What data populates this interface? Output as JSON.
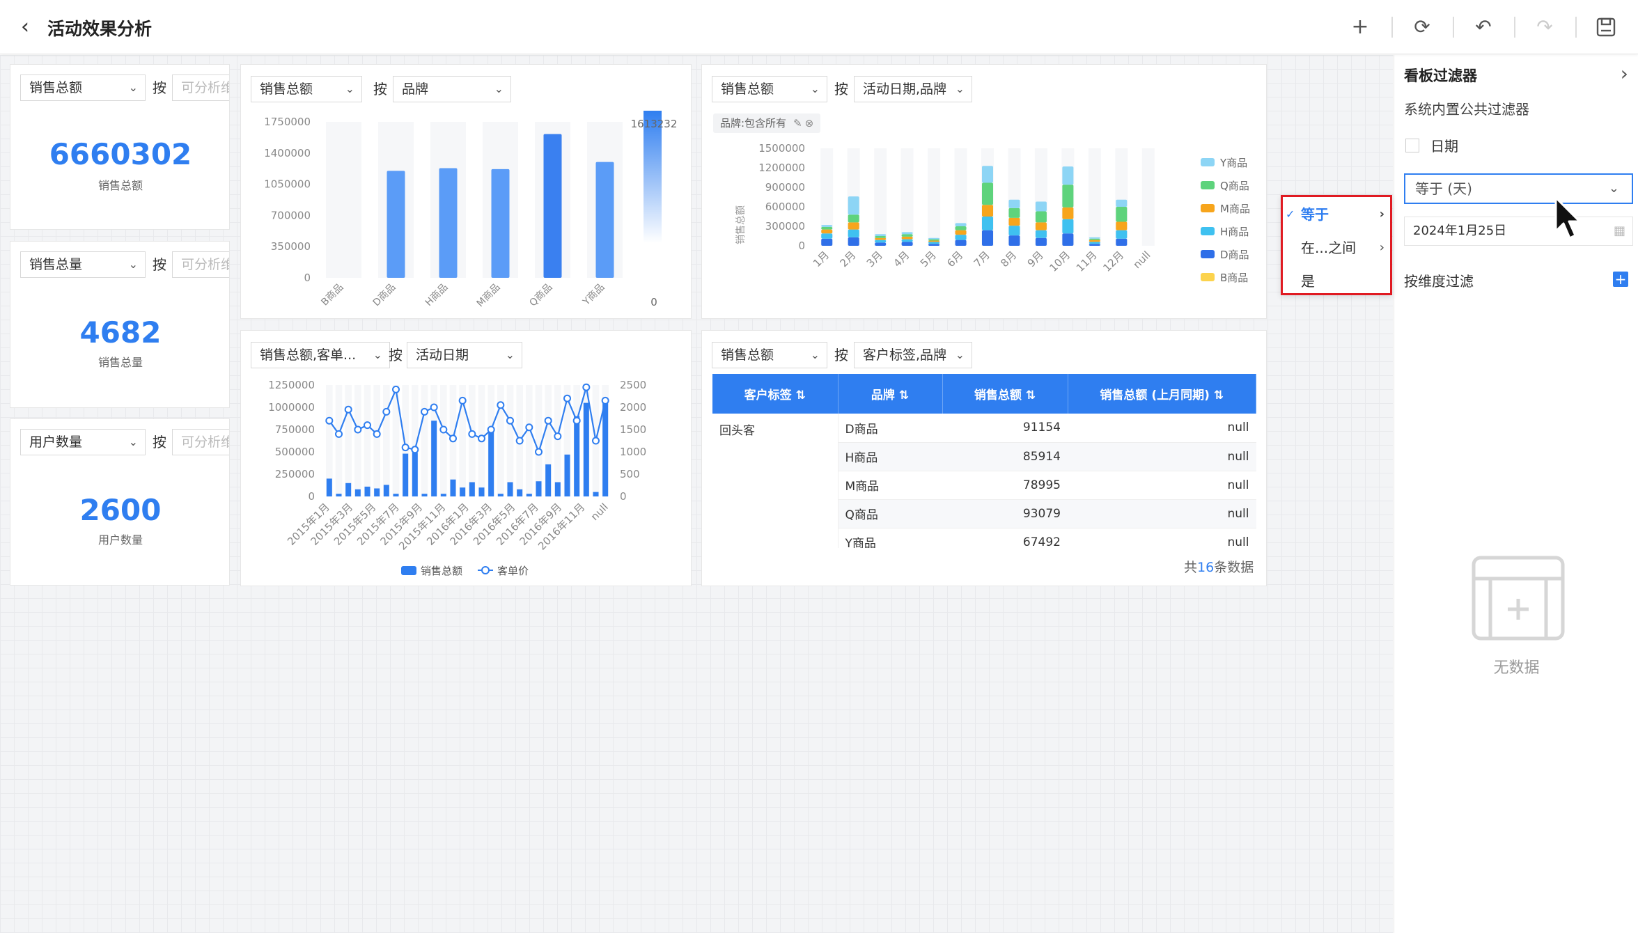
{
  "header": {
    "title": "活动效果分析"
  },
  "kpis": [
    {
      "metric": "销售总额",
      "by": "按",
      "placeholder": "可分析维度",
      "value": "6660302",
      "caption": "销售总额"
    },
    {
      "metric": "销售总量",
      "by": "按",
      "placeholder": "可分析维度",
      "value": "4682",
      "caption": "销售总量"
    },
    {
      "metric": "用户数量",
      "by": "按",
      "placeholder": "可分析维度",
      "value": "2600",
      "caption": "用户数量"
    }
  ],
  "bar_card": {
    "metric": "销售总额",
    "by": "按",
    "dimension": "品牌",
    "legend_max": "1613232",
    "legend_min": "0"
  },
  "stack_card": {
    "metric": "销售总额",
    "by": "按",
    "dimension": "活动日期,品牌",
    "filter_tag": "品牌:包含所有",
    "ylabel": "销售总额"
  },
  "combo_card": {
    "metric": "销售总额,客单...",
    "by": "按",
    "dimension": "活动日期",
    "legend": [
      "销售总额",
      "客单价"
    ]
  },
  "table_card": {
    "metric": "销售总额",
    "by": "按",
    "dimension": "客户标签,品牌",
    "columns": [
      "客户标签",
      "品牌",
      "销售总额",
      "销售总额 (上月同期)"
    ],
    "group_label": "回头客",
    "rows": [
      {
        "brand": "D商品",
        "sales": "91154",
        "prev": "null"
      },
      {
        "brand": "H商品",
        "sales": "85914",
        "prev": "null"
      },
      {
        "brand": "M商品",
        "sales": "78995",
        "prev": "null"
      },
      {
        "brand": "Q商品",
        "sales": "93079",
        "prev": "null"
      },
      {
        "brand": "Y商品",
        "sales": "67492",
        "prev": "null"
      }
    ],
    "footer_prefix": "共",
    "footer_count": "16",
    "footer_suffix": "条数据"
  },
  "dropdown": {
    "items": [
      "等于",
      "在...之间",
      "是"
    ]
  },
  "panel": {
    "title": "看板过滤器",
    "subtitle": "系统内置公共过滤器",
    "checkbox_label": "日期",
    "operator": "等于 (天)",
    "date_value": "2024年1月25日",
    "dim_filter": "按维度过滤",
    "empty": "无数据"
  },
  "chart_data": [
    {
      "type": "bar",
      "categories": [
        "B商品",
        "D商品",
        "H商品",
        "M商品",
        "Q商品",
        "Y商品"
      ],
      "values": [
        0,
        1200000,
        1230000,
        1220000,
        1613232,
        1300000
      ],
      "ylim": [
        0,
        1750000
      ],
      "yticks": [
        "1750000",
        "1400000",
        "1050000",
        "700000",
        "350000",
        "0"
      ],
      "colors": [
        "#5b9cf7",
        "#5b9cf7",
        "#5b9cf7",
        "#5b9cf7",
        "#3a80f0",
        "#5b9cf7"
      ]
    },
    {
      "type": "bar",
      "stacked": true,
      "categories": [
        "1月",
        "2月",
        "3月",
        "4月",
        "5月",
        "6月",
        "7月",
        "8月",
        "9月",
        "10月",
        "11月",
        "12月",
        "null"
      ],
      "yticks": [
        "1500000",
        "1200000",
        "900000",
        "600000",
        "300000",
        "0"
      ],
      "ylim": [
        0,
        1500000
      ],
      "series": [
        {
          "name": "D商品",
          "color": "#2f6fe8",
          "values": [
            110000,
            130000,
            50000,
            60000,
            30000,
            90000,
            240000,
            160000,
            120000,
            190000,
            30000,
            110000,
            0
          ]
        },
        {
          "name": "H商品",
          "color": "#3fc1f0",
          "values": [
            80000,
            120000,
            40000,
            40000,
            30000,
            80000,
            210000,
            150000,
            120000,
            220000,
            30000,
            130000,
            0
          ]
        },
        {
          "name": "M商品",
          "color": "#f7a51c",
          "values": [
            60000,
            110000,
            30000,
            40000,
            20000,
            70000,
            180000,
            120000,
            120000,
            180000,
            30000,
            130000,
            0
          ]
        },
        {
          "name": "Q商品",
          "color": "#5ed37c",
          "values": [
            40000,
            120000,
            30000,
            40000,
            20000,
            60000,
            340000,
            150000,
            170000,
            350000,
            20000,
            230000,
            0
          ]
        },
        {
          "name": "Y商品",
          "color": "#8dd5f5",
          "values": [
            30000,
            280000,
            30000,
            30000,
            20000,
            50000,
            260000,
            130000,
            150000,
            280000,
            20000,
            110000,
            0
          ]
        },
        {
          "name": "B商品",
          "color": "#fcd34d",
          "values": [
            0,
            0,
            0,
            0,
            0,
            0,
            0,
            0,
            0,
            0,
            0,
            0,
            0
          ]
        }
      ]
    },
    {
      "type": "bar+line",
      "x_labels": [
        "2015年1月",
        "2015年3月",
        "2015年5月",
        "2015年7月",
        "2015年9月",
        "2015年11月",
        "2016年1月",
        "2016年3月",
        "2016年5月",
        "2016年7月",
        "2016年9月",
        "2016年11月",
        "null"
      ],
      "left_ticks": [
        "1250000",
        "1000000",
        "750000",
        "500000",
        "250000",
        "0"
      ],
      "right_ticks": [
        "2500",
        "2000",
        "1500",
        "1000",
        "500",
        "0"
      ],
      "left_ylim": [
        0,
        1250000
      ],
      "right_ylim": [
        0,
        2500
      ],
      "series": [
        {
          "name": "销售总额",
          "type": "bar",
          "values": [
            200000,
            30000,
            150000,
            80000,
            110000,
            90000,
            130000,
            30000,
            480000,
            490000,
            30000,
            850000,
            30000,
            190000,
            100000,
            160000,
            100000,
            750000,
            30000,
            160000,
            80000,
            30000,
            170000,
            360000,
            160000,
            470000,
            900000,
            1050000,
            50000,
            1100000
          ]
        },
        {
          "name": "客单价",
          "type": "line",
          "values": [
            1700,
            1400,
            1950,
            1500,
            1600,
            1400,
            1900,
            2400,
            1100,
            1050,
            1900,
            2000,
            1500,
            1300,
            2150,
            1400,
            1300,
            1500,
            2050,
            1700,
            1250,
            1550,
            1000,
            1700,
            1350,
            2200,
            1700,
            2450,
            1250,
            2150
          ]
        }
      ]
    }
  ]
}
